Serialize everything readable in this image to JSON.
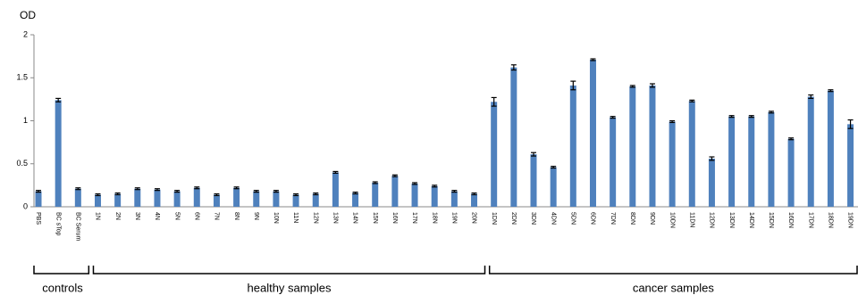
{
  "chart_data": {
    "type": "bar",
    "y_label": "OD",
    "color": "#4f81bd",
    "ylim": [
      0,
      2
    ],
    "yticks": [
      0,
      0.5,
      1,
      1.5,
      2
    ],
    "groups": [
      {
        "name": "controls",
        "categories": [
          "PBS",
          "BC sTop",
          "BC Serum"
        ],
        "values": [
          0.18,
          1.24,
          0.21
        ],
        "errors": [
          0.01,
          0.02,
          0.01
        ]
      },
      {
        "name": "healthy samples",
        "categories": [
          "1N",
          "2N",
          "3N",
          "4N",
          "5N",
          "6N",
          "7N",
          "8N",
          "9N",
          "10N",
          "11N",
          "12N",
          "13N",
          "14N",
          "15N",
          "16N",
          "17N",
          "18N",
          "19N",
          "20N"
        ],
        "values": [
          0.14,
          0.15,
          0.21,
          0.2,
          0.18,
          0.22,
          0.14,
          0.22,
          0.18,
          0.18,
          0.14,
          0.15,
          0.4,
          0.16,
          0.28,
          0.36,
          0.27,
          0.24,
          0.18,
          0.15
        ],
        "errors": [
          0.01,
          0.01,
          0.01,
          0.01,
          0.01,
          0.01,
          0.01,
          0.01,
          0.01,
          0.01,
          0.01,
          0.01,
          0.01,
          0.01,
          0.01,
          0.01,
          0.01,
          0.01,
          0.01,
          0.01
        ]
      },
      {
        "name": "cancer samples",
        "categories": [
          "1DN",
          "2DN",
          "3DN",
          "4DN",
          "5DN",
          "6DN",
          "7DN",
          "8DN",
          "9DN",
          "10DN",
          "11DN",
          "12DN",
          "13DN",
          "14DN",
          "15DN",
          "16DN",
          "17DN",
          "18DN",
          "19DN"
        ],
        "values": [
          1.22,
          1.62,
          0.61,
          0.46,
          1.41,
          1.71,
          1.04,
          1.4,
          1.41,
          0.99,
          1.23,
          0.56,
          1.05,
          1.05,
          1.1,
          0.79,
          1.28,
          1.35,
          0.96
        ],
        "errors": [
          0.05,
          0.03,
          0.02,
          0.01,
          0.05,
          0.01,
          0.01,
          0.01,
          0.02,
          0.01,
          0.01,
          0.02,
          0.01,
          0.01,
          0.01,
          0.01,
          0.02,
          0.01,
          0.05
        ]
      }
    ]
  }
}
